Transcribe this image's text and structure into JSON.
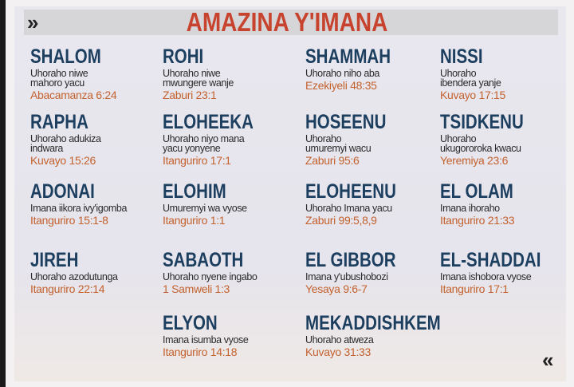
{
  "title": "AMAZINA Y'IMANA",
  "icons": {
    "next": "double-chevron-right",
    "prev": "double-chevron-left"
  },
  "next_glyph": "»",
  "prev_glyph": "«",
  "colors": {
    "name": "#1c3e5f",
    "reference": "#c3622e",
    "title": "#c7432d"
  },
  "names": [
    {
      "name": "SHALOM",
      "desc": "Uhoraho  niwe\nmahoro yacu",
      "ref": "Abacamanza  6:24"
    },
    {
      "name": "ROHI",
      "desc": "Uhoraho niwe\nmwungere wanje",
      "ref": "Zaburi 23:1"
    },
    {
      "name": "SHAMMAH",
      "desc": "Uhoraho niho aba",
      "ref": "Ezekiyeli 48:35"
    },
    {
      "name": "NISSI",
      "desc": "Uhoraho\nibendera yanje",
      "ref": "Kuvayo 17:15"
    },
    {
      "name": "RAPHA",
      "desc": "Uhoraho adukiza\nindwara",
      "ref": "Kuvayo 15:26"
    },
    {
      "name": "ELOHEEKA",
      "desc": "Uhoraho niyo mana\nyacu  yonyene",
      "ref": "Itanguriro  17:1"
    },
    {
      "name": "HOSEENU",
      "desc": "Uhoraho\numuremyi wacu",
      "ref": "Zaburi 95:6"
    },
    {
      "name": "TSIDKENU",
      "desc": "Uhoraho\nukugororoka kwacu",
      "ref": "Yeremiya 23:6"
    },
    {
      "name": "ADONAI",
      "desc": "Imana iikora ivy'igomba",
      "ref": "Itanguriro  15:1-8"
    },
    {
      "name": "ELOHIM",
      "desc": "Umuremyi wa vyose",
      "ref": "Itanguriro  1:1"
    },
    {
      "name": "ELOHEENU",
      "desc": "Uhoraho Imana yacu",
      "ref": "Zaburi  99:5,8,9"
    },
    {
      "name": "EL  OLAM",
      "desc": "Imana  ihoraho",
      "ref": "Itanguriro  21:33"
    },
    {
      "name": "JIREH",
      "desc": "Uhoraho azodutunga",
      "ref": "Itanguriro  22:14"
    },
    {
      "name": "SABAOTH",
      "desc": "Uhoraho nyene ingabo",
      "ref": "1 Samweli  1:3"
    },
    {
      "name": "EL  GIBBOR",
      "desc": "Imana  y'ubushobozi",
      "ref": "Yesaya  9:6-7"
    },
    {
      "name": "EL-SHADDAI",
      "desc": "Imana  ishobora vyose",
      "ref": "Itanguriro  17:1"
    },
    {
      "name": "ELYON",
      "desc": "Imana isumba vyose",
      "ref": "Itanguriro  14:18"
    },
    {
      "name": "MEKADDISHKEM",
      "desc": "Uhoraho atweza",
      "ref": "Kuvayo 31:33"
    }
  ]
}
